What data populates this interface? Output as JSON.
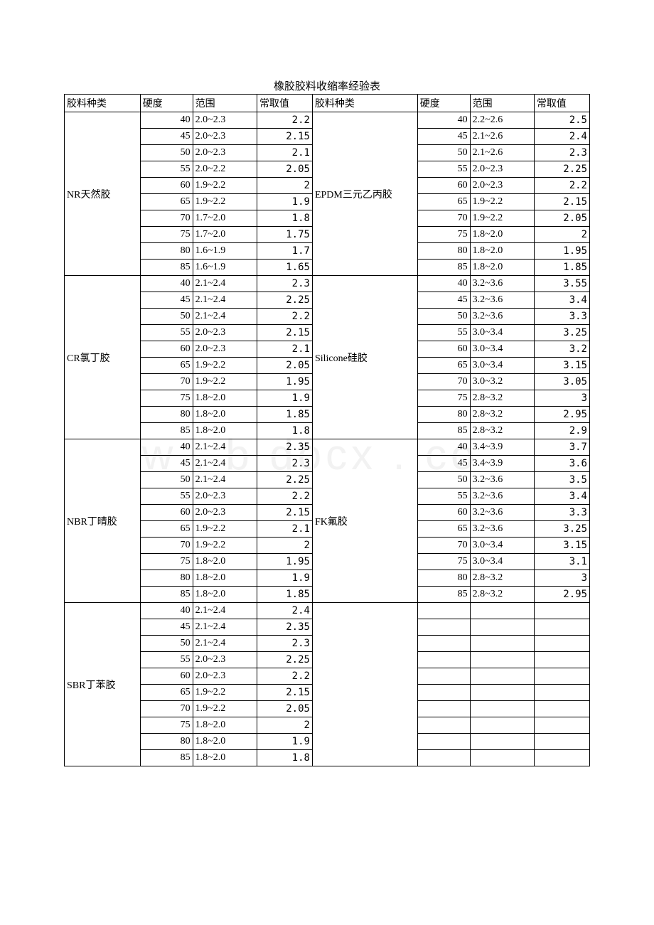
{
  "title": "橡胶胶料收缩率经验表",
  "watermark": "w . b docx . co",
  "headers": [
    "胶料种类",
    "硬度",
    "范围",
    "常取值",
    "胶料种类",
    "硬度",
    "范围",
    "常取值"
  ],
  "groups": [
    {
      "left": {
        "type": "NR天然胶",
        "rows": [
          {
            "h": "40",
            "r": "2.0~2.3",
            "v": "2.2"
          },
          {
            "h": "45",
            "r": "2.0~2.3",
            "v": "2.15"
          },
          {
            "h": "50",
            "r": "2.0~2.3",
            "v": "2.1"
          },
          {
            "h": "55",
            "r": "2.0~2.2",
            "v": "2.05"
          },
          {
            "h": "60",
            "r": "1.9~2.2",
            "v": "2"
          },
          {
            "h": "65",
            "r": "1.9~2.2",
            "v": "1.9"
          },
          {
            "h": "70",
            "r": "1.7~2.0",
            "v": "1.8"
          },
          {
            "h": "75",
            "r": "1.7~2.0",
            "v": "1.75"
          },
          {
            "h": "80",
            "r": "1.6~1.9",
            "v": "1.7"
          },
          {
            "h": "85",
            "r": "1.6~1.9",
            "v": "1.65"
          }
        ]
      },
      "right": {
        "type": "EPDM三元乙丙胶",
        "rows": [
          {
            "h": "40",
            "r": "2.2~2.6",
            "v": "2.5"
          },
          {
            "h": "45",
            "r": "2.1~2.6",
            "v": "2.4"
          },
          {
            "h": "50",
            "r": "2.1~2.6",
            "v": "2.3"
          },
          {
            "h": "55",
            "r": "2.0~2.3",
            "v": "2.25"
          },
          {
            "h": "60",
            "r": "2.0~2.3",
            "v": "2.2"
          },
          {
            "h": "65",
            "r": "1.9~2.2",
            "v": "2.15"
          },
          {
            "h": "70",
            "r": "1.9~2.2",
            "v": "2.05"
          },
          {
            "h": "75",
            "r": "1.8~2.0",
            "v": "2"
          },
          {
            "h": "80",
            "r": "1.8~2.0",
            "v": "1.95"
          },
          {
            "h": "85",
            "r": "1.8~2.0",
            "v": "1.85"
          }
        ]
      }
    },
    {
      "left": {
        "type": "CR氯丁胶",
        "rows": [
          {
            "h": "40",
            "r": "2.1~2.4",
            "v": "2.3"
          },
          {
            "h": "45",
            "r": "2.1~2.4",
            "v": "2.25"
          },
          {
            "h": "50",
            "r": "2.1~2.4",
            "v": "2.2"
          },
          {
            "h": "55",
            "r": "2.0~2.3",
            "v": "2.15"
          },
          {
            "h": "60",
            "r": "2.0~2.3",
            "v": "2.1"
          },
          {
            "h": "65",
            "r": "1.9~2.2",
            "v": "2.05"
          },
          {
            "h": "70",
            "r": "1.9~2.2",
            "v": "1.95"
          },
          {
            "h": "75",
            "r": "1.8~2.0",
            "v": "1.9"
          },
          {
            "h": "80",
            "r": "1.8~2.0",
            "v": "1.85"
          },
          {
            "h": "85",
            "r": "1.8~2.0",
            "v": "1.8"
          }
        ]
      },
      "right": {
        "type": "Silicone硅胶",
        "rows": [
          {
            "h": "40",
            "r": "3.2~3.6",
            "v": "3.55"
          },
          {
            "h": "45",
            "r": "3.2~3.6",
            "v": "3.4"
          },
          {
            "h": "50",
            "r": "3.2~3.6",
            "v": "3.3"
          },
          {
            "h": "55",
            "r": "3.0~3.4",
            "v": "3.25"
          },
          {
            "h": "60",
            "r": "3.0~3.4",
            "v": "3.2"
          },
          {
            "h": "65",
            "r": "3.0~3.4",
            "v": "3.15"
          },
          {
            "h": "70",
            "r": "3.0~3.2",
            "v": "3.05"
          },
          {
            "h": "75",
            "r": "2.8~3.2",
            "v": "3"
          },
          {
            "h": "80",
            "r": "2.8~3.2",
            "v": "2.95"
          },
          {
            "h": "85",
            "r": "2.8~3.2",
            "v": "2.9"
          }
        ]
      }
    },
    {
      "left": {
        "type": "NBR丁晴胶",
        "rows": [
          {
            "h": "40",
            "r": "2.1~2.4",
            "v": "2.35"
          },
          {
            "h": "45",
            "r": "2.1~2.4",
            "v": "2.3"
          },
          {
            "h": "50",
            "r": "2.1~2.4",
            "v": "2.25"
          },
          {
            "h": "55",
            "r": "2.0~2.3",
            "v": "2.2"
          },
          {
            "h": "60",
            "r": "2.0~2.3",
            "v": "2.15"
          },
          {
            "h": "65",
            "r": "1.9~2.2",
            "v": "2.1"
          },
          {
            "h": "70",
            "r": "1.9~2.2",
            "v": "2"
          },
          {
            "h": "75",
            "r": "1.8~2.0",
            "v": "1.95"
          },
          {
            "h": "80",
            "r": "1.8~2.0",
            "v": "1.9"
          },
          {
            "h": "85",
            "r": "1.8~2.0",
            "v": "1.85"
          }
        ]
      },
      "right": {
        "type": "FK氟胶",
        "rows": [
          {
            "h": "40",
            "r": "3.4~3.9",
            "v": "3.7"
          },
          {
            "h": "45",
            "r": "3.4~3.9",
            "v": "3.6"
          },
          {
            "h": "50",
            "r": "3.2~3.6",
            "v": "3.5"
          },
          {
            "h": "55",
            "r": "3.2~3.6",
            "v": "3.4"
          },
          {
            "h": "60",
            "r": "3.2~3.6",
            "v": "3.3"
          },
          {
            "h": "65",
            "r": "3.2~3.6",
            "v": "3.25"
          },
          {
            "h": "70",
            "r": "3.0~3.4",
            "v": "3.15"
          },
          {
            "h": "75",
            "r": "3.0~3.4",
            "v": "3.1"
          },
          {
            "h": "80",
            "r": "2.8~3.2",
            "v": "3"
          },
          {
            "h": "85",
            "r": "2.8~3.2",
            "v": "2.95"
          }
        ]
      }
    },
    {
      "left": {
        "type": "SBR丁苯胶",
        "rows": [
          {
            "h": "40",
            "r": "2.1~2.4",
            "v": "2.4"
          },
          {
            "h": "45",
            "r": "2.1~2.4",
            "v": "2.35"
          },
          {
            "h": "50",
            "r": "2.1~2.4",
            "v": "2.3"
          },
          {
            "h": "55",
            "r": "2.0~2.3",
            "v": "2.25"
          },
          {
            "h": "60",
            "r": "2.0~2.3",
            "v": "2.2"
          },
          {
            "h": "65",
            "r": "1.9~2.2",
            "v": "2.15"
          },
          {
            "h": "70",
            "r": "1.9~2.2",
            "v": "2.05"
          },
          {
            "h": "75",
            "r": "1.8~2.0",
            "v": "2"
          },
          {
            "h": "80",
            "r": "1.8~2.0",
            "v": "1.9"
          },
          {
            "h": "85",
            "r": "1.8~2.0",
            "v": "1.8"
          }
        ]
      },
      "right": {
        "type": "",
        "rows": [
          {
            "h": "",
            "r": "",
            "v": ""
          },
          {
            "h": "",
            "r": "",
            "v": ""
          },
          {
            "h": "",
            "r": "",
            "v": ""
          },
          {
            "h": "",
            "r": "",
            "v": ""
          },
          {
            "h": "",
            "r": "",
            "v": ""
          },
          {
            "h": "",
            "r": "",
            "v": ""
          },
          {
            "h": "",
            "r": "",
            "v": ""
          },
          {
            "h": "",
            "r": "",
            "v": ""
          },
          {
            "h": "",
            "r": "",
            "v": ""
          },
          {
            "h": "",
            "r": "",
            "v": ""
          }
        ]
      }
    }
  ]
}
